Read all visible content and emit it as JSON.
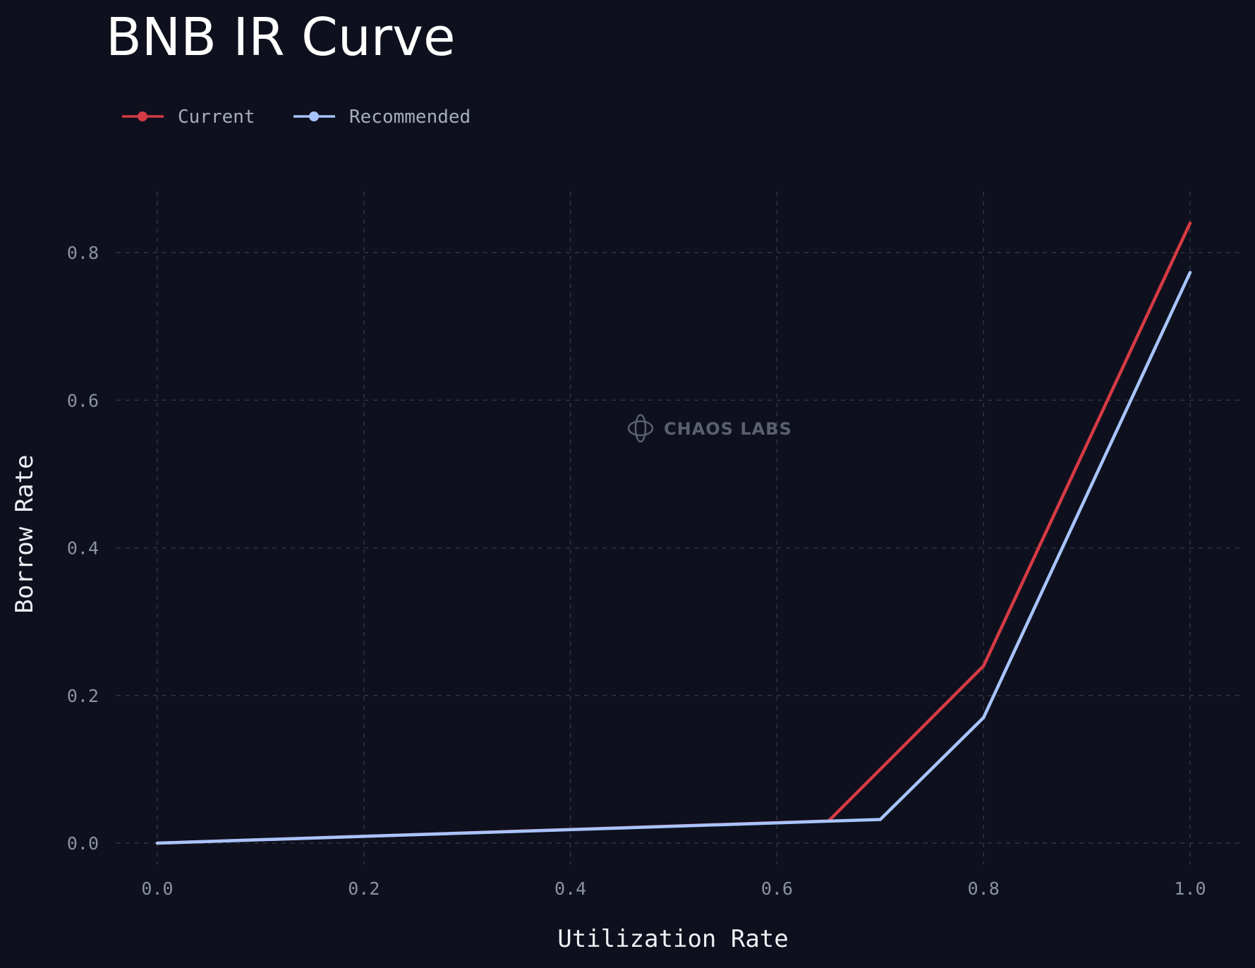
{
  "chart_data": {
    "type": "line",
    "title": "BNB IR Curve",
    "xlabel": "Utilization Rate",
    "ylabel": "Borrow Rate",
    "xlim": [
      -0.04,
      1.05
    ],
    "ylim": [
      -0.06,
      0.88
    ],
    "x_ticks": [
      "0.0",
      "0.2",
      "0.4",
      "0.6",
      "0.8",
      "1.0"
    ],
    "y_ticks": [
      "0.0",
      "0.2",
      "0.4",
      "0.6",
      "0.8"
    ],
    "grid": true,
    "legend_position": "top-left",
    "series": [
      {
        "name": "Current",
        "color": "#d63a45",
        "x": [
          0.0,
          0.65,
          0.8,
          1.0
        ],
        "y": [
          0.0,
          0.03,
          0.24,
          0.84
        ]
      },
      {
        "name": "Recommended",
        "color": "#a8c4ff",
        "x": [
          0.0,
          0.7,
          0.8,
          1.0
        ],
        "y": [
          0.0,
          0.032,
          0.17,
          0.773
        ]
      }
    ]
  },
  "watermark": {
    "text": "CHAOS LABS",
    "icon": "chaos-labs-logo-icon"
  }
}
